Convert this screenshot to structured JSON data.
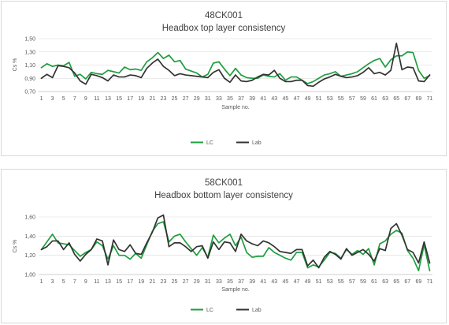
{
  "chart_data": [
    {
      "type": "line",
      "title": "48CK001",
      "subtitle": "Headbox top layer consistency",
      "xlabel": "Sample no.",
      "ylabel": "Cs %",
      "ylim": [
        0.7,
        1.5
      ],
      "yticks": [
        "0,70",
        "0,90",
        "1,10",
        "1,30",
        "1,50"
      ],
      "grid": true,
      "legend": "bottom",
      "x": [
        1,
        2,
        3,
        4,
        5,
        6,
        7,
        8,
        9,
        10,
        11,
        12,
        13,
        14,
        15,
        16,
        17,
        18,
        19,
        20,
        21,
        22,
        23,
        24,
        25,
        26,
        27,
        28,
        29,
        30,
        31,
        32,
        33,
        34,
        35,
        36,
        37,
        38,
        39,
        40,
        41,
        42,
        43,
        44,
        45,
        46,
        47,
        48,
        49,
        50,
        51,
        52,
        53,
        54,
        55,
        56,
        57,
        58,
        59,
        60,
        61,
        62,
        63,
        64,
        65,
        66,
        67,
        68,
        69,
        70,
        71
      ],
      "xtick_labels": [
        "1",
        "3",
        "5",
        "7",
        "9",
        "11",
        "13",
        "15",
        "17",
        "19",
        "21",
        "23",
        "25",
        "27",
        "29",
        "31",
        "33",
        "35",
        "37",
        "39",
        "41",
        "43",
        "45",
        "47",
        "49",
        "51",
        "53",
        "55",
        "57",
        "59",
        "61",
        "63",
        "65",
        "67",
        "69",
        "71"
      ],
      "series": [
        {
          "name": "LC",
          "color": "#1e9e3e",
          "values": [
            1.06,
            1.12,
            1.08,
            1.1,
            1.09,
            1.14,
            0.93,
            0.96,
            0.89,
            0.99,
            0.97,
            0.96,
            1.02,
            1.0,
            0.98,
            1.07,
            1.03,
            1.04,
            1.02,
            1.15,
            1.21,
            1.29,
            1.2,
            1.25,
            1.15,
            1.17,
            1.04,
            1.01,
            0.98,
            0.92,
            0.96,
            1.13,
            1.15,
            1.04,
            0.94,
            1.05,
            0.95,
            0.91,
            0.9,
            0.9,
            0.95,
            0.93,
            0.92,
            0.97,
            0.87,
            0.92,
            0.92,
            0.87,
            0.82,
            0.85,
            0.9,
            0.95,
            0.97,
            1.0,
            0.93,
            0.95,
            0.97,
            1.0,
            1.06,
            1.12,
            1.17,
            1.2,
            1.07,
            1.18,
            1.24,
            1.24,
            1.3,
            1.29,
            1.02,
            0.9,
            0.94
          ]
        },
        {
          "name": "Lab",
          "color": "#333333",
          "values": [
            0.9,
            0.96,
            0.91,
            1.09,
            1.08,
            1.06,
            0.98,
            0.86,
            0.81,
            0.96,
            0.94,
            0.91,
            0.86,
            0.95,
            0.92,
            0.92,
            0.95,
            0.94,
            0.91,
            1.05,
            1.13,
            1.19,
            1.08,
            1.02,
            0.94,
            0.97,
            0.95,
            0.94,
            0.93,
            0.92,
            0.91,
            0.99,
            1.03,
            0.9,
            0.84,
            0.95,
            0.86,
            0.85,
            0.87,
            0.92,
            0.96,
            0.95,
            1.02,
            0.9,
            0.85,
            0.85,
            0.87,
            0.87,
            0.79,
            0.78,
            0.84,
            0.89,
            0.92,
            0.96,
            0.93,
            0.91,
            0.92,
            0.94,
            0.99,
            1.06,
            0.97,
            0.99,
            0.95,
            1.02,
            1.43,
            1.03,
            1.07,
            1.06,
            0.86,
            0.85,
            0.95
          ]
        }
      ]
    },
    {
      "type": "line",
      "title": "58CK001",
      "subtitle": "Headbox bottom layer consistency",
      "xlabel": "Sample no.",
      "ylabel": "Cs %",
      "ylim": [
        1.0,
        1.6
      ],
      "yticks": [
        "1,00",
        "1,20",
        "1,40",
        "1,60"
      ],
      "grid": true,
      "legend": "bottom",
      "x": [
        1,
        2,
        3,
        4,
        5,
        6,
        7,
        8,
        9,
        10,
        11,
        12,
        13,
        14,
        15,
        16,
        17,
        18,
        19,
        20,
        21,
        22,
        23,
        24,
        25,
        26,
        27,
        28,
        29,
        30,
        31,
        32,
        33,
        34,
        35,
        36,
        37,
        38,
        39,
        40,
        41,
        42,
        43,
        44,
        45,
        46,
        47,
        48,
        49,
        50,
        51,
        52,
        53,
        54,
        55,
        56,
        57,
        58,
        59,
        60,
        61,
        62,
        63,
        64,
        65,
        66,
        67,
        68,
        69,
        70,
        71
      ],
      "xtick_labels": [
        "1",
        "3",
        "5",
        "7",
        "9",
        "11",
        "13",
        "15",
        "17",
        "19",
        "21",
        "23",
        "25",
        "27",
        "29",
        "31",
        "33",
        "35",
        "37",
        "39",
        "41",
        "43",
        "45",
        "47",
        "49",
        "51",
        "53",
        "55",
        "57",
        "59",
        "61",
        "63",
        "65",
        "67",
        "69",
        "71"
      ],
      "series": [
        {
          "name": "LC",
          "color": "#1e9e3e",
          "values": [
            1.26,
            1.34,
            1.42,
            1.33,
            1.32,
            1.31,
            1.25,
            1.19,
            1.23,
            1.26,
            1.34,
            1.3,
            1.16,
            1.3,
            1.2,
            1.2,
            1.16,
            1.22,
            1.17,
            1.31,
            1.45,
            1.53,
            1.55,
            1.34,
            1.4,
            1.42,
            1.34,
            1.27,
            1.2,
            1.28,
            1.18,
            1.41,
            1.33,
            1.38,
            1.42,
            1.3,
            1.39,
            1.23,
            1.18,
            1.19,
            1.19,
            1.28,
            1.23,
            1.2,
            1.17,
            1.15,
            1.23,
            1.23,
            1.07,
            1.1,
            1.08,
            1.15,
            1.23,
            1.22,
            1.17,
            1.26,
            1.21,
            1.25,
            1.21,
            1.27,
            1.1,
            1.32,
            1.35,
            1.42,
            1.46,
            1.43,
            1.25,
            1.17,
            1.04,
            1.31,
            1.04
          ]
        },
        {
          "name": "Lab",
          "color": "#333333",
          "values": [
            1.26,
            1.29,
            1.35,
            1.35,
            1.26,
            1.33,
            1.21,
            1.14,
            1.21,
            1.26,
            1.37,
            1.35,
            1.1,
            1.36,
            1.26,
            1.24,
            1.31,
            1.22,
            1.21,
            1.33,
            1.44,
            1.59,
            1.62,
            1.29,
            1.33,
            1.33,
            1.29,
            1.24,
            1.29,
            1.3,
            1.17,
            1.34,
            1.26,
            1.34,
            1.33,
            1.24,
            1.42,
            1.35,
            1.32,
            1.3,
            1.35,
            1.33,
            1.29,
            1.24,
            1.23,
            1.22,
            1.26,
            1.26,
            1.09,
            1.15,
            1.07,
            1.18,
            1.24,
            1.21,
            1.16,
            1.27,
            1.2,
            1.23,
            1.26,
            1.21,
            1.14,
            1.27,
            1.25,
            1.48,
            1.53,
            1.41,
            1.26,
            1.23,
            1.12,
            1.34,
            1.12
          ]
        }
      ]
    }
  ]
}
